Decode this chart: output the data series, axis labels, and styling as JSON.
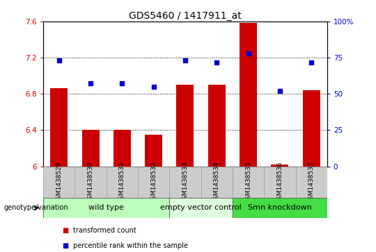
{
  "title": "GDS5460 / 1417911_at",
  "samples": [
    "GSM1438529",
    "GSM1438530",
    "GSM1438531",
    "GSM1438532",
    "GSM1438533",
    "GSM1438534",
    "GSM1438535",
    "GSM1438536",
    "GSM1438537"
  ],
  "bar_values": [
    6.86,
    6.4,
    6.4,
    6.35,
    6.9,
    6.9,
    7.58,
    6.02,
    6.84
  ],
  "dot_values": [
    7.17,
    6.92,
    6.92,
    6.88,
    7.17,
    7.15,
    7.25,
    6.83,
    7.15
  ],
  "bar_color": "#cc0000",
  "dot_color": "#0000cc",
  "ylim_left": [
    6.0,
    7.6
  ],
  "ylim_right": [
    0,
    100
  ],
  "yticks_left": [
    6.0,
    6.4,
    6.8,
    7.2,
    7.6
  ],
  "ytick_labels_left": [
    "6",
    "6.4",
    "6.8",
    "7.2",
    "7.6"
  ],
  "ytick_labels_right": [
    "0",
    "25",
    "50",
    "75",
    "100%"
  ],
  "groups": [
    {
      "label": "wild type",
      "samples": [
        0,
        1,
        2,
        3
      ],
      "color": "#bbffbb"
    },
    {
      "label": "empty vector control",
      "samples": [
        4,
        5
      ],
      "color": "#ddffdd"
    },
    {
      "label": "Smn knockdown",
      "samples": [
        6,
        7,
        8
      ],
      "color": "#44dd44"
    }
  ],
  "group_row_color": "#cccccc",
  "legend_bar_label": "transformed count",
  "legend_dot_label": "percentile rank within the sample",
  "genotype_label": "genotype/variation",
  "title_fontsize": 10,
  "tick_fontsize": 7.5,
  "group_fontsize": 8,
  "sample_fontsize": 6.5
}
